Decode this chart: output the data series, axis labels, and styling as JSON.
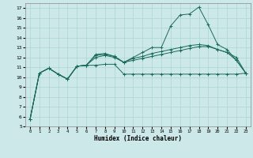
{
  "xlabel": "Humidex (Indice chaleur)",
  "bg_color": "#cce8e8",
  "line_color": "#1a6b5a",
  "grid_color": "#aad4d4",
  "xlim": [
    -0.5,
    23.5
  ],
  "ylim": [
    5,
    17.5
  ],
  "xticks": [
    0,
    1,
    2,
    3,
    4,
    5,
    6,
    7,
    8,
    9,
    10,
    11,
    12,
    13,
    14,
    15,
    16,
    17,
    18,
    19,
    20,
    21,
    22,
    23
  ],
  "yticks": [
    5,
    6,
    7,
    8,
    9,
    10,
    11,
    12,
    13,
    14,
    15,
    16,
    17
  ],
  "series": [
    [
      5.7,
      10.4,
      10.9,
      10.3,
      9.8,
      11.1,
      11.2,
      11.2,
      11.3,
      11.3,
      10.3,
      10.3,
      10.3,
      10.3,
      10.3,
      10.3,
      10.3,
      10.3,
      10.3,
      10.3,
      10.3,
      10.3,
      10.3,
      10.4
    ],
    [
      5.7,
      10.4,
      10.9,
      10.3,
      9.8,
      11.1,
      11.2,
      12.0,
      12.2,
      12.0,
      11.5,
      11.7,
      11.9,
      12.1,
      12.3,
      12.5,
      12.7,
      12.9,
      13.1,
      13.1,
      12.8,
      12.5,
      12.0,
      10.4
    ],
    [
      5.7,
      10.4,
      10.9,
      10.3,
      9.8,
      11.1,
      11.2,
      12.2,
      12.3,
      12.1,
      11.5,
      11.9,
      12.1,
      12.4,
      12.6,
      12.8,
      13.0,
      13.2,
      13.3,
      13.2,
      12.8,
      12.5,
      11.7,
      10.4
    ],
    [
      5.7,
      10.4,
      10.9,
      10.3,
      9.8,
      11.1,
      11.2,
      12.3,
      12.4,
      12.1,
      11.5,
      12.0,
      12.5,
      13.0,
      13.0,
      15.2,
      16.3,
      16.4,
      17.1,
      15.3,
      13.3,
      12.8,
      11.7,
      10.4
    ]
  ]
}
